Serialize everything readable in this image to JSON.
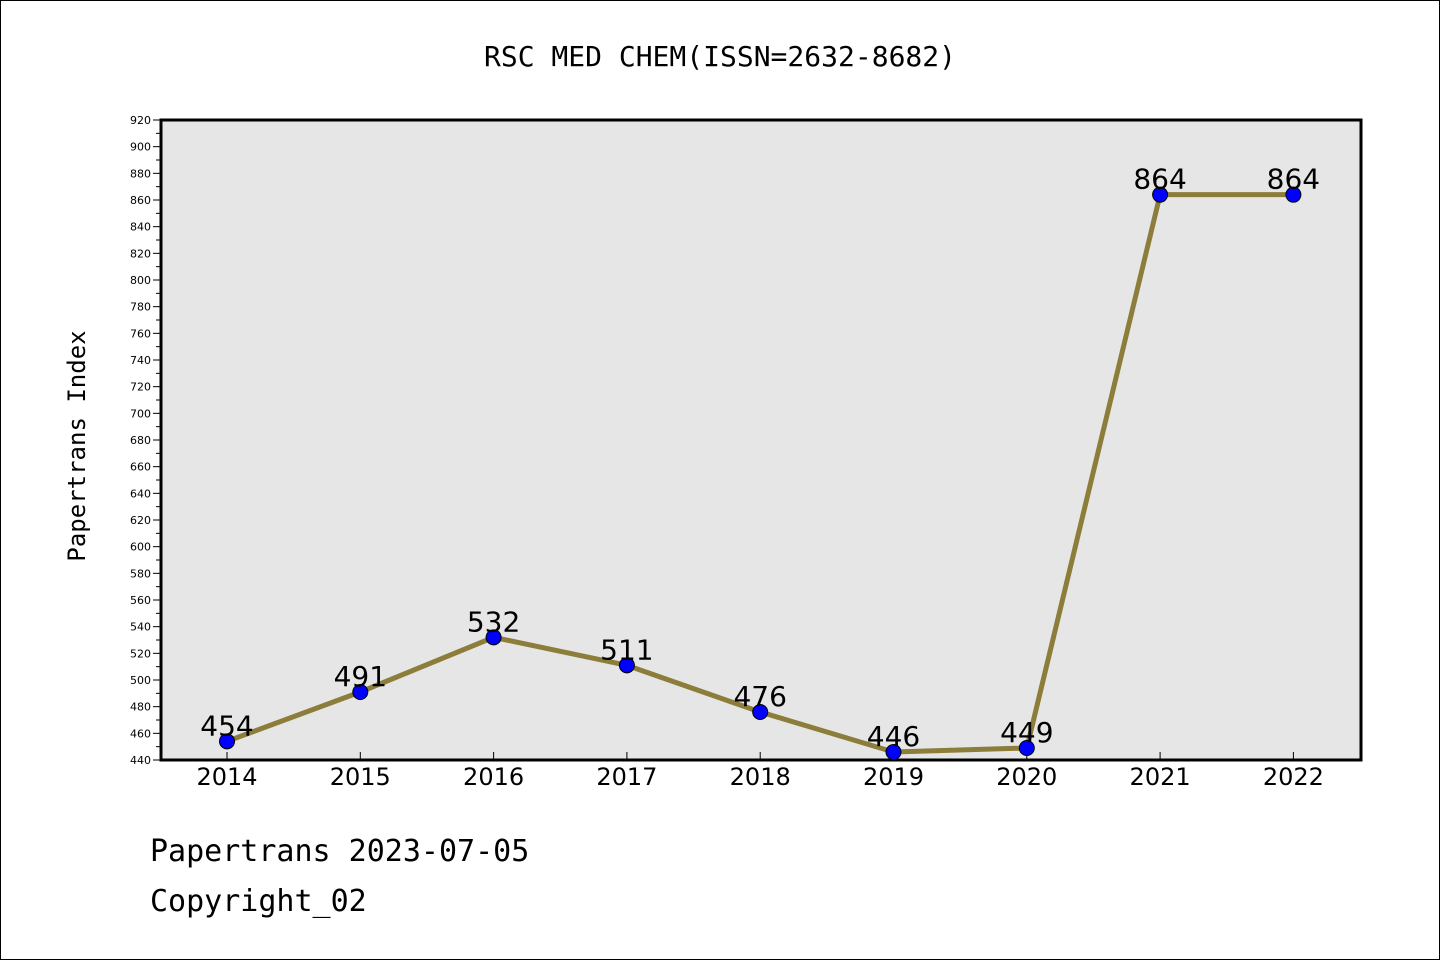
{
  "chart_data": {
    "type": "line",
    "title": "RSC MED CHEM(ISSN=2632-8682)",
    "xlabel": "",
    "ylabel": "Papertrans Index",
    "x": [
      "2014",
      "2015",
      "2016",
      "2017",
      "2018",
      "2019",
      "2020",
      "2021",
      "2022"
    ],
    "series": [
      {
        "values": [
          454,
          491,
          532,
          511,
          476,
          446,
          449,
          864,
          864
        ]
      }
    ],
    "data_labels": [
      "454",
      "491",
      "532",
      "511",
      "476",
      "446",
      "449",
      "864",
      "864"
    ],
    "y_ticks": [
      "440",
      "460",
      "480",
      "500",
      "520",
      "540",
      "560",
      "580",
      "600",
      "620",
      "640",
      "660",
      "680",
      "700",
      "720",
      "740",
      "760",
      "780",
      "800",
      "820",
      "840",
      "860",
      "880",
      "900",
      "920"
    ],
    "ylim": [
      440,
      920
    ],
    "grid": false,
    "legend": "none",
    "colors": {
      "line": "#8c7d3a",
      "marker": "#0000ff",
      "plot_background": "#e6e6e6"
    }
  },
  "footer": {
    "line1": "Papertrans 2023-07-05",
    "line2": "Copyright_02"
  }
}
